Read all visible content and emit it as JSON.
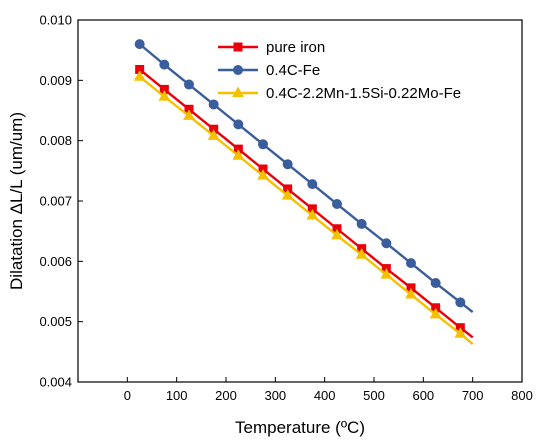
{
  "chart_data": {
    "type": "line",
    "title": "",
    "xlabel": "Temperature (ºC)",
    "ylabel": "Dilatation ΔL/L (um/um)",
    "xlim": [
      -100,
      800
    ],
    "ylim": [
      0.004,
      0.01
    ],
    "x_ticks": [
      0,
      100,
      200,
      300,
      400,
      500,
      600,
      700,
      800
    ],
    "y_ticks": [
      0.004,
      0.005,
      0.006,
      0.007,
      0.008,
      0.009,
      0.01
    ],
    "x_tick_labels": [
      "0",
      "100",
      "200",
      "300",
      "400",
      "500",
      "600",
      "700",
      "800"
    ],
    "y_tick_labels": [
      "0.004",
      "0.005",
      "0.006",
      "0.007",
      "0.008",
      "0.009",
      "0.010"
    ],
    "grid": false,
    "legend_position": "top-right",
    "x": [
      25,
      75,
      125,
      175,
      225,
      275,
      325,
      375,
      425,
      475,
      525,
      575,
      625,
      675
    ],
    "line_end_x": 700,
    "series": [
      {
        "name": "pure iron",
        "color": "#e8000b",
        "marker": "square",
        "values": [
          0.00918,
          0.00885,
          0.00852,
          0.00819,
          0.00786,
          0.00753,
          0.0072,
          0.00687,
          0.00654,
          0.00621,
          0.00588,
          0.00556,
          0.00523,
          0.0049
        ],
        "line_end_value": 0.00474
      },
      {
        "name": "0.4C-Fe",
        "color": "#3a5e9c",
        "marker": "circle",
        "values": [
          0.0096,
          0.00926,
          0.00893,
          0.0086,
          0.00827,
          0.00794,
          0.00761,
          0.00728,
          0.00695,
          0.00662,
          0.0063,
          0.00597,
          0.00564,
          0.00532
        ],
        "line_end_value": 0.00516
      },
      {
        "name": "0.4C-2.2Mn-1.5Si-0.22Mo-Fe",
        "color": "#f5c000",
        "marker": "triangle",
        "values": [
          0.00906,
          0.00873,
          0.00841,
          0.00808,
          0.00775,
          0.00742,
          0.00709,
          0.00676,
          0.00643,
          0.00611,
          0.00578,
          0.00545,
          0.00512,
          0.0048
        ],
        "line_end_value": 0.00463
      }
    ]
  }
}
